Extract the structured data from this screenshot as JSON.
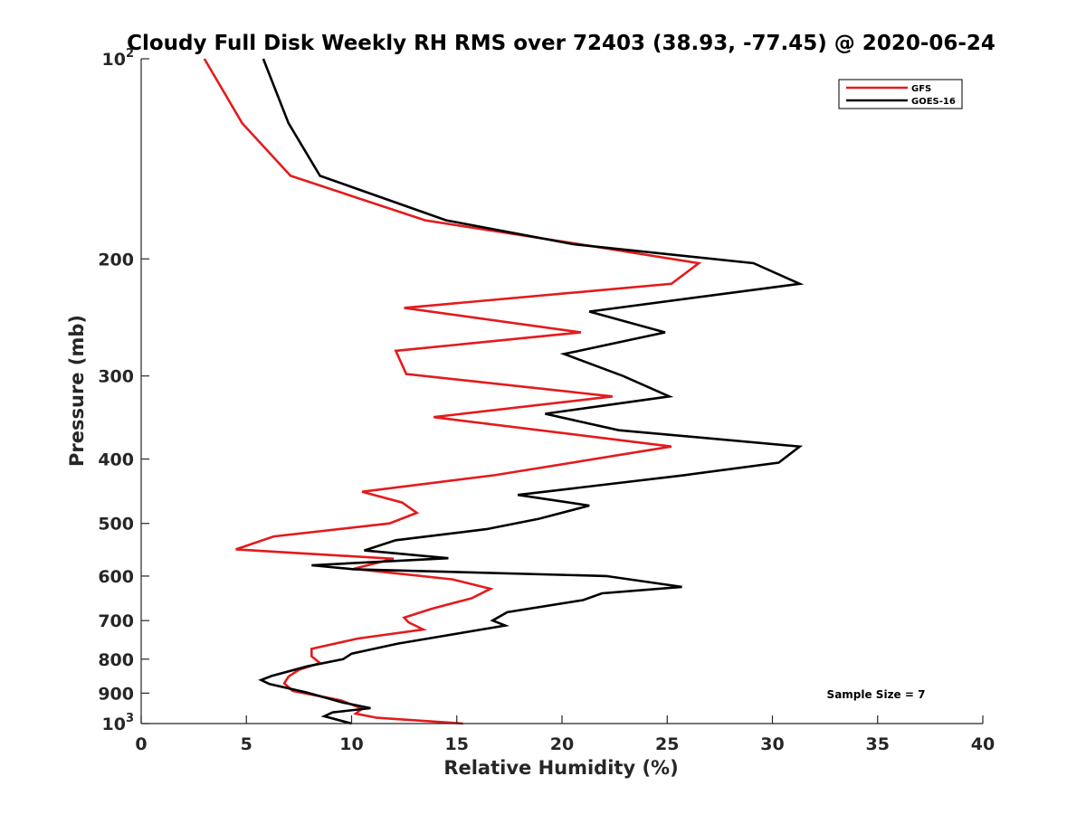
{
  "chart_data": {
    "type": "line",
    "title": "Cloudy Full Disk Weekly RH RMS over 72403 (38.93, -77.45) @ 2020-06-24",
    "xlabel": "Relative Humidity (%)",
    "ylabel": "Pressure (mb)",
    "xlim": [
      0,
      40
    ],
    "ylim": [
      100,
      1000
    ],
    "yscale": "log",
    "yreversed": true,
    "xticks": [
      0,
      5,
      10,
      15,
      20,
      25,
      30,
      35,
      40
    ],
    "xtick_labels": [
      "0",
      "5",
      "10",
      "15",
      "20",
      "25",
      "30",
      "35",
      "40"
    ],
    "yticks": [
      {
        "value": 100,
        "base": "10",
        "exp": "2"
      },
      {
        "value": 200,
        "base": "200",
        "exp": ""
      },
      {
        "value": 300,
        "base": "300",
        "exp": ""
      },
      {
        "value": 400,
        "base": "400",
        "exp": ""
      },
      {
        "value": 500,
        "base": "500",
        "exp": ""
      },
      {
        "value": 600,
        "base": "600",
        "exp": ""
      },
      {
        "value": 700,
        "base": "700",
        "exp": ""
      },
      {
        "value": 800,
        "base": "800",
        "exp": ""
      },
      {
        "value": 900,
        "base": "900",
        "exp": ""
      },
      {
        "value": 1000,
        "base": "10",
        "exp": "3"
      }
    ],
    "grid": false,
    "legend_position": "top-right",
    "annotation": "Sample Size = 7",
    "series": [
      {
        "name": "GFS",
        "color": "#e41a1c",
        "points": [
          [
            3.0,
            100
          ],
          [
            4.8,
            125
          ],
          [
            7.1,
            150
          ],
          [
            13.5,
            175
          ],
          [
            20.8,
            190
          ],
          [
            26.5,
            203
          ],
          [
            25.2,
            218
          ],
          [
            12.5,
            237
          ],
          [
            20.9,
            258
          ],
          [
            12.1,
            275
          ],
          [
            12.6,
            298
          ],
          [
            22.4,
            322
          ],
          [
            13.9,
            346
          ],
          [
            25.2,
            383
          ],
          [
            16.8,
            423
          ],
          [
            10.5,
            448
          ],
          [
            12.4,
            465
          ],
          [
            13.1,
            482
          ],
          [
            11.8,
            500
          ],
          [
            6.3,
            523
          ],
          [
            4.5,
            547
          ],
          [
            12.0,
            565
          ],
          [
            10.1,
            585
          ],
          [
            14.8,
            607
          ],
          [
            16.6,
            627
          ],
          [
            15.7,
            648
          ],
          [
            13.8,
            672
          ],
          [
            12.5,
            693
          ],
          [
            12.7,
            704
          ],
          [
            13.4,
            722
          ],
          [
            10.3,
            745
          ],
          [
            8.1,
            772
          ],
          [
            8.1,
            792
          ],
          [
            8.5,
            811
          ],
          [
            7.5,
            830
          ],
          [
            7.0,
            850
          ],
          [
            6.8,
            870
          ],
          [
            7.2,
            893
          ],
          [
            9.5,
            923
          ],
          [
            10.5,
            950
          ],
          [
            10.2,
            966
          ],
          [
            11.2,
            980
          ],
          [
            15.3,
            1000
          ]
        ]
      },
      {
        "name": "GOES-16",
        "color": "#000000",
        "points": [
          [
            5.8,
            100
          ],
          [
            7.0,
            125
          ],
          [
            8.5,
            150
          ],
          [
            14.5,
            175
          ],
          [
            20.5,
            190
          ],
          [
            29.1,
            203
          ],
          [
            31.3,
            218
          ],
          [
            21.3,
            240
          ],
          [
            24.9,
            258
          ],
          [
            20.1,
            278
          ],
          [
            22.9,
            300
          ],
          [
            25.1,
            322
          ],
          [
            19.2,
            342
          ],
          [
            22.7,
            362
          ],
          [
            31.3,
            383
          ],
          [
            30.3,
            405
          ],
          [
            25.8,
            423
          ],
          [
            17.9,
            453
          ],
          [
            21.3,
            470
          ],
          [
            18.9,
            492
          ],
          [
            16.4,
            510
          ],
          [
            12.1,
            530
          ],
          [
            10.6,
            549
          ],
          [
            14.6,
            564
          ],
          [
            8.1,
            578
          ],
          [
            10.1,
            586
          ],
          [
            22.1,
            600
          ],
          [
            25.7,
            623
          ],
          [
            21.9,
            637
          ],
          [
            21.0,
            652
          ],
          [
            17.4,
            680
          ],
          [
            16.7,
            700
          ],
          [
            17.3,
            712
          ],
          [
            12.2,
            758
          ],
          [
            10.0,
            785
          ],
          [
            9.6,
            800
          ],
          [
            7.9,
            820
          ],
          [
            6.2,
            848
          ],
          [
            5.7,
            860
          ],
          [
            6.1,
            872
          ],
          [
            7.8,
            897
          ],
          [
            9.6,
            930
          ],
          [
            10.9,
            948
          ],
          [
            9.1,
            962
          ],
          [
            8.7,
            975
          ],
          [
            10.0,
            1000
          ]
        ]
      }
    ]
  }
}
